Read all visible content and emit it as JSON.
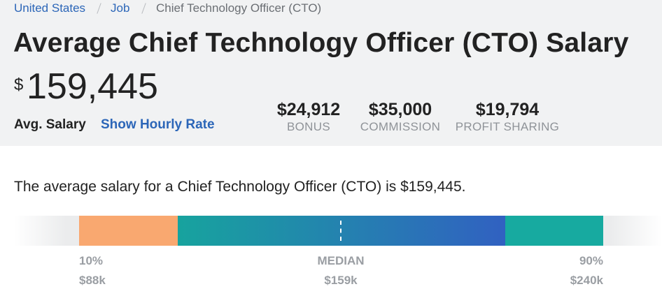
{
  "breadcrumb": [
    "United States",
    "Job",
    "Chief Technology Officer (CTO)"
  ],
  "header": {
    "title": "Average Chief Technology Officer (CTO) Salary",
    "currency": "$",
    "amount": "159,445",
    "label": "Avg. Salary",
    "link": "Show Hourly Rate"
  },
  "extras": [
    {
      "value": "$24,912",
      "label": "BONUS"
    },
    {
      "value": "$35,000",
      "label": "COMMISSION"
    },
    {
      "value": "$19,794",
      "label": "PROFIT SHARING"
    }
  ],
  "summary": "The average salary for a Chief Technology Officer (CTO) is $159,445.",
  "range": [
    {
      "label": "10%",
      "value": "$88k"
    },
    {
      "label": "MEDIAN",
      "value": "$159k"
    },
    {
      "label": "90%",
      "value": "$240k"
    }
  ]
}
